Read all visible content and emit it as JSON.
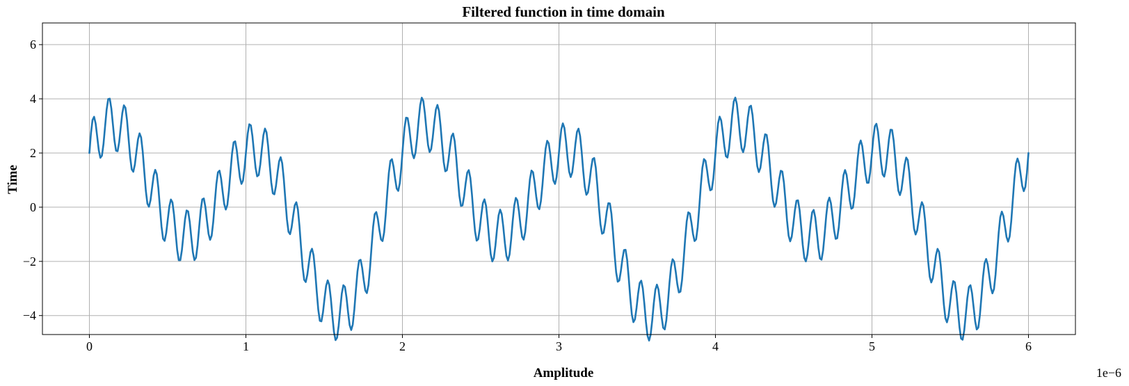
{
  "chart_data": {
    "type": "line",
    "title": "Filtered function in time domain",
    "xlabel": "Amplitude",
    "ylabel": "Time",
    "x_offset_label": "1e−6",
    "xlim": [
      -3e-07,
      6.3e-06
    ],
    "ylim": [
      -4.7,
      6.8
    ],
    "x_ticks": [
      0,
      1e-06,
      2e-06,
      3e-06,
      4e-06,
      5e-06,
      6e-06
    ],
    "x_tick_labels": [
      "0",
      "1",
      "2",
      "3",
      "4",
      "5",
      "6"
    ],
    "y_ticks": [
      -4,
      -2,
      0,
      2,
      4,
      6
    ],
    "y_tick_labels": [
      "−4",
      "−2",
      "0",
      "2",
      "4",
      "6"
    ],
    "grid": true,
    "series": [
      {
        "color": "#1f77b4",
        "x_start": 0,
        "x_end": 6e-06,
        "num_points": 600,
        "components": [
          {
            "amplitude": 1.0,
            "frequency": 10000000.0,
            "phase": 0
          },
          {
            "amplitude": 2.0,
            "frequency": 1000000.0,
            "phase": 1.571
          },
          {
            "amplitude": 1.5,
            "frequency": 500000.0,
            "phase": 0
          },
          {
            "amplitude": 1.5,
            "frequency": 1000000.0,
            "phase": 0
          }
        ]
      }
    ]
  }
}
